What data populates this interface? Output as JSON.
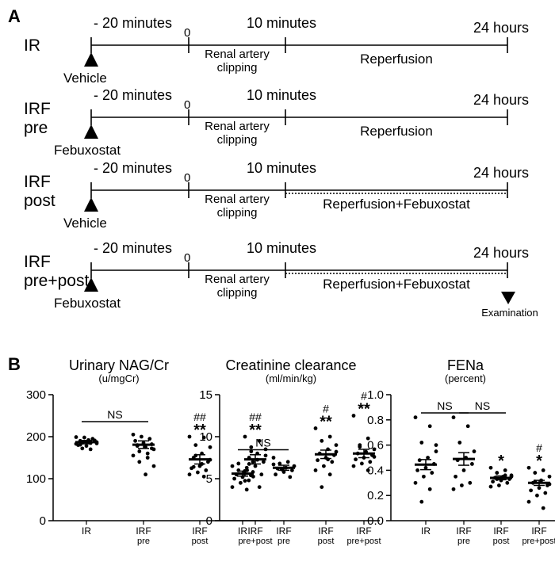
{
  "panel_a": {
    "label": "A",
    "events": {
      "pre": "- 20 minutes",
      "zero": "0",
      "ten": "10 minutes",
      "end": "24 hours",
      "clip1": "Renal artery",
      "clip2": "clipping",
      "examination": "Examination"
    },
    "groups": [
      {
        "label_lines": [
          "IR"
        ],
        "drug": "Vehicle",
        "reperfusion": "Reperfusion",
        "dotted": false
      },
      {
        "label_lines": [
          "IRF",
          "pre"
        ],
        "drug": "Febuxostat",
        "reperfusion": "Reperfusion",
        "dotted": false
      },
      {
        "label_lines": [
          "IRF",
          "post"
        ],
        "drug": "Vehicle",
        "reperfusion": "Reperfusion+Febuxostat",
        "dotted": true
      },
      {
        "label_lines": [
          "IRF",
          "pre+post"
        ],
        "drug": "Febuxostat",
        "reperfusion": "Reperfusion+Febuxostat",
        "dotted": true
      }
    ]
  },
  "panel_b_label": "B",
  "chart_data": [
    {
      "type": "scatter",
      "title": "Urinary NAG/Cr",
      "unit": "(u/mgCr)",
      "ylim": [
        0,
        300
      ],
      "yticks": [
        "0",
        "100",
        "200",
        "300"
      ],
      "categories": [
        [
          "IR",
          ""
        ],
        [
          "IRF",
          "pre"
        ],
        [
          "IRF",
          "post"
        ],
        [
          "IRF",
          "pre+post"
        ]
      ],
      "means": [
        187,
        181,
        146,
        146
      ],
      "sem": [
        4,
        9,
        11,
        11
      ],
      "points": [
        [
          183,
          185,
          186,
          187,
          188,
          190,
          191,
          178,
          180,
          195,
          198,
          199,
          170,
          172,
          184,
          192,
          181
        ],
        [
          155,
          160,
          165,
          170,
          175,
          178,
          182,
          185,
          190,
          195,
          200,
          205,
          150,
          140,
          130,
          110,
          180,
          172
        ],
        [
          200,
          198,
          180,
          175,
          160,
          150,
          140,
          130,
          125,
          120,
          115,
          110,
          105,
          155,
          145,
          135,
          128
        ],
        [
          200,
          190,
          175,
          170,
          160,
          150,
          140,
          130,
          120,
          110,
          105,
          95,
          80,
          165,
          155,
          145,
          135
        ]
      ],
      "markers": [
        {
          "category": 2,
          "hash": "##",
          "star": "**"
        },
        {
          "category": 3,
          "hash": "##",
          "star": "**"
        }
      ],
      "ns": [
        {
          "from": 0,
          "to": 1,
          "text": "NS"
        }
      ]
    },
    {
      "type": "scatter",
      "title": "Creatinine clearance",
      "unit": "(ml/min/kg)",
      "ylim": [
        0,
        15
      ],
      "yticks": [
        "0",
        "5",
        "10",
        "15"
      ],
      "categories": [
        [
          "IR",
          ""
        ],
        [
          "IRF",
          "pre"
        ],
        [
          "IRF",
          "post"
        ],
        [
          "IRF",
          "pre+post"
        ]
      ],
      "means": [
        5.6,
        6.3,
        7.9,
        8.0
      ],
      "sem": [
        0.3,
        0.3,
        0.5,
        0.5
      ],
      "points": [
        [
          6.5,
          6.3,
          6.0,
          5.8,
          5.6,
          5.5,
          5.4,
          5.2,
          5.0,
          4.8,
          4.5,
          4.0,
          3.7,
          6.8,
          7.0,
          5.9
        ],
        [
          7.5,
          7.0,
          6.8,
          6.5,
          6.3,
          6.2,
          6.0,
          5.8,
          5.5,
          5.2,
          6.1,
          6.7
        ],
        [
          11.0,
          10.0,
          9.5,
          9.0,
          8.5,
          8.0,
          7.8,
          7.5,
          7.2,
          7.0,
          6.5,
          6.0,
          5.5,
          4.0,
          8.2,
          7.3
        ],
        [
          12.5,
          9.8,
          9.0,
          8.5,
          8.2,
          8.0,
          7.8,
          7.5,
          7.3,
          7.0,
          6.8,
          6.5,
          6.0,
          8.8,
          7.6
        ]
      ],
      "markers": [
        {
          "category": 2,
          "hash": "#",
          "star": "**"
        },
        {
          "category": 3,
          "hash": "#",
          "star": "**"
        }
      ],
      "ns": [
        {
          "from": 0,
          "to": 1,
          "text": "NS"
        }
      ]
    },
    {
      "type": "scatter",
      "title": "FENa",
      "unit": "(percent)",
      "ylim": [
        0,
        1
      ],
      "yticks": [
        "0.0",
        "0.2",
        "0.4",
        "0.6",
        "0.8",
        "1.0"
      ],
      "categories": [
        [
          "IR",
          ""
        ],
        [
          "IRF",
          "pre"
        ],
        [
          "IRF",
          "post"
        ],
        [
          "IRF",
          "pre+post"
        ]
      ],
      "means": [
        0.445,
        0.49,
        0.34,
        0.3
      ],
      "sem": [
        0.04,
        0.05,
        0.015,
        0.02
      ],
      "points": [
        [
          0.82,
          0.75,
          0.62,
          0.55,
          0.5,
          0.48,
          0.45,
          0.42,
          0.4,
          0.38,
          0.35,
          0.3,
          0.25,
          0.15,
          0.6
        ],
        [
          0.82,
          0.75,
          0.62,
          0.55,
          0.5,
          0.48,
          0.45,
          0.4,
          0.35,
          0.3,
          0.28,
          0.25
        ],
        [
          0.42,
          0.4,
          0.38,
          0.36,
          0.35,
          0.34,
          0.33,
          0.32,
          0.31,
          0.3,
          0.28,
          0.27,
          0.36,
          0.33,
          0.35
        ],
        [
          0.42,
          0.4,
          0.38,
          0.35,
          0.32,
          0.3,
          0.28,
          0.26,
          0.24,
          0.22,
          0.2,
          0.15,
          0.1,
          0.31,
          0.29
        ]
      ],
      "markers": [
        {
          "category": 2,
          "hash": "",
          "star": "*"
        },
        {
          "category": 3,
          "hash": "#",
          "star": "*"
        }
      ],
      "ns": [
        {
          "from": 0,
          "to": 1,
          "text": "NS"
        },
        {
          "from": 1,
          "to": 2,
          "text": "NS"
        }
      ]
    }
  ]
}
